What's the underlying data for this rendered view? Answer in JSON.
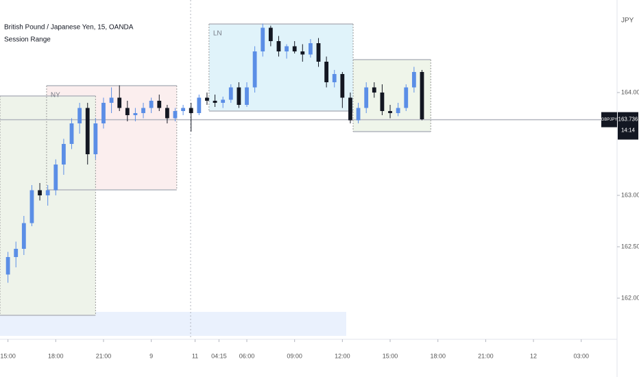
{
  "chart_data": {
    "type": "candlestick",
    "title": "British Pound / Japanese Yen, 15, OANDA",
    "subtitle": "Session Range",
    "currency": "JPY",
    "bull_color": "#5b8ee6",
    "bear_color": "#131722",
    "xlim": [
      -2,
      153
    ],
    "ylim": [
      161.6,
      164.9
    ],
    "yticks": [
      {
        "value": 162,
        "label": "162.000"
      },
      {
        "value": 162.5,
        "label": "162.500"
      },
      {
        "value": 163,
        "label": "163.000"
      },
      {
        "value": 164,
        "label": "164.000"
      }
    ],
    "xticks": [
      {
        "value": 0,
        "label": "15:00"
      },
      {
        "value": 12,
        "label": "18:00"
      },
      {
        "value": 24,
        "label": "21:00"
      },
      {
        "value": 36,
        "label": "9"
      },
      {
        "value": 47,
        "label": "11"
      },
      {
        "value": 53,
        "label": "04:15"
      },
      {
        "value": 60,
        "label": "06:00"
      },
      {
        "value": 72,
        "label": "09:00"
      },
      {
        "value": 84,
        "label": "12:00"
      },
      {
        "value": 96,
        "label": "15:00"
      },
      {
        "value": 108,
        "label": "18:00"
      },
      {
        "value": 120,
        "label": "21:00"
      },
      {
        "value": 132,
        "label": "12"
      },
      {
        "value": 144,
        "label": "03:00"
      }
    ],
    "x": [
      0,
      2,
      4,
      6,
      8,
      10,
      12,
      14,
      16,
      18,
      20,
      22,
      24,
      26,
      28,
      30,
      32,
      34,
      36,
      38,
      40,
      42,
      44,
      46,
      48,
      50,
      52,
      54,
      56,
      58,
      60,
      62,
      64,
      66,
      68,
      70,
      72,
      74,
      76,
      78,
      80,
      82,
      84,
      86,
      88,
      90,
      92,
      94,
      96,
      98,
      100,
      102,
      104
    ],
    "open": [
      162.23,
      162.4,
      162.48,
      162.73,
      163.05,
      163.0,
      163.05,
      163.3,
      163.5,
      163.7,
      163.85,
      163.4,
      163.7,
      163.9,
      163.95,
      163.85,
      163.78,
      163.8,
      163.85,
      163.92,
      163.85,
      163.75,
      163.82,
      163.85,
      163.8,
      163.95,
      163.92,
      163.9,
      163.93,
      164.05,
      163.88,
      164.05,
      164.4,
      164.63,
      164.5,
      164.4,
      164.45,
      164.4,
      164.37,
      164.48,
      164.3,
      164.1,
      164.18,
      163.95,
      163.73,
      163.85,
      164.05,
      164.0,
      163.82,
      163.8,
      163.85,
      164.05,
      164.2
    ],
    "high": [
      162.45,
      162.55,
      162.8,
      163.1,
      163.12,
      163.1,
      163.35,
      163.55,
      163.75,
      163.9,
      163.9,
      163.75,
      163.95,
      164.05,
      164.07,
      163.92,
      163.85,
      163.9,
      163.95,
      163.98,
      163.88,
      163.85,
      163.88,
      163.9,
      163.98,
      164.0,
      163.98,
      163.96,
      164.08,
      164.1,
      164.1,
      164.45,
      164.67,
      164.65,
      164.55,
      164.47,
      164.5,
      164.47,
      164.52,
      164.53,
      164.35,
      164.22,
      164.2,
      164.0,
      163.9,
      164.1,
      164.1,
      164.08,
      163.88,
      163.9,
      164.08,
      164.25,
      164.22
    ],
    "low": [
      162.15,
      162.3,
      162.42,
      162.7,
      162.95,
      162.9,
      163.0,
      163.2,
      163.45,
      163.6,
      163.3,
      163.35,
      163.65,
      163.8,
      163.82,
      163.72,
      163.72,
      163.75,
      163.8,
      163.82,
      163.7,
      163.72,
      163.78,
      163.62,
      163.78,
      163.88,
      163.86,
      163.85,
      163.9,
      163.85,
      163.86,
      164.0,
      164.35,
      164.45,
      164.35,
      164.33,
      164.38,
      164.3,
      164.34,
      164.25,
      164.05,
      164.05,
      163.85,
      163.7,
      163.7,
      163.8,
      163.95,
      163.78,
      163.75,
      163.77,
      163.82,
      164.0,
      163.73
    ],
    "close": [
      162.4,
      162.48,
      162.73,
      163.05,
      163.0,
      163.05,
      163.3,
      163.5,
      163.7,
      163.85,
      163.4,
      163.7,
      163.9,
      163.95,
      163.85,
      163.78,
      163.8,
      163.85,
      163.92,
      163.85,
      163.75,
      163.82,
      163.85,
      163.8,
      163.95,
      163.92,
      163.9,
      163.93,
      164.05,
      163.88,
      164.05,
      164.4,
      164.63,
      164.5,
      164.4,
      164.45,
      164.4,
      164.37,
      164.48,
      164.3,
      164.1,
      164.18,
      163.95,
      163.73,
      163.85,
      164.05,
      164.0,
      163.82,
      163.8,
      163.85,
      164.05,
      164.2,
      163.74
    ],
    "sessions": [
      {
        "x": [
          -2,
          22
        ],
        "high": 163.967,
        "low": 161.833,
        "color": "#eef3ea"
      },
      {
        "label": "NY",
        "x": [
          9.7,
          42.4
        ],
        "high": 164.067,
        "low": 163.053,
        "color": "#fbeeee"
      },
      {
        "label": "LN",
        "x": [
          50.5,
          86.7
        ],
        "high": 164.667,
        "low": 163.82,
        "color": "#e0f3fa"
      },
      {
        "x": [
          86.7,
          106.2
        ],
        "high": 164.32,
        "low": 163.62,
        "color": "#eff5ea"
      }
    ],
    "last_price": {
      "symbol": "GBPJPY",
      "value": 163.736,
      "countdown": "14:14"
    }
  }
}
